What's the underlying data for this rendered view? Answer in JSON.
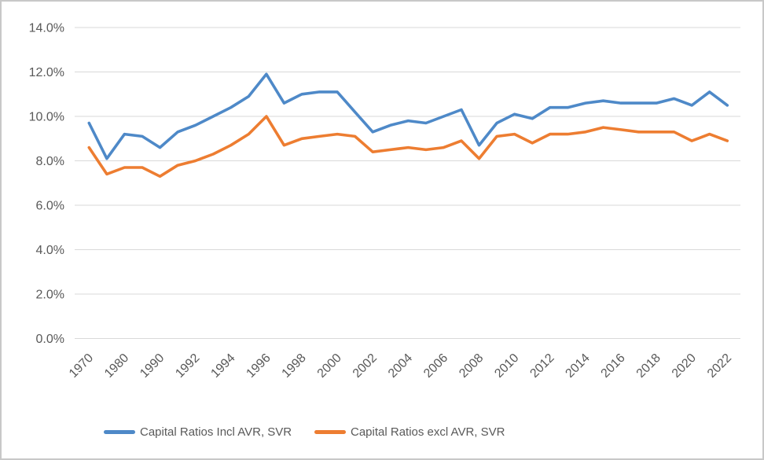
{
  "chart_data": {
    "type": "line",
    "title": "",
    "categories": [
      "1970",
      "1975",
      "1980",
      "1985",
      "1990",
      "1991",
      "1992",
      "1993",
      "1994",
      "1995",
      "1996",
      "1997",
      "1998",
      "1999",
      "2000",
      "2001",
      "2002",
      "2003",
      "2004",
      "2005",
      "2006",
      "2007",
      "2008",
      "2009",
      "2010",
      "2011",
      "2012",
      "2013",
      "2014",
      "2015",
      "2016",
      "2017",
      "2018",
      "2019",
      "2020",
      "2021",
      "2022"
    ],
    "x_axis": {
      "visible_tick_labels": [
        "1970",
        "1980",
        "1990",
        "1992",
        "1994",
        "1996",
        "1998",
        "2000",
        "2002",
        "2004",
        "2006",
        "2008",
        "2010",
        "2012",
        "2014",
        "2016",
        "2018",
        "2020",
        "2022"
      ],
      "label_rotation_deg": 45
    },
    "y_axis": {
      "tick_labels": [
        "0.0%",
        "2.0%",
        "4.0%",
        "6.0%",
        "8.0%",
        "10.0%",
        "12.0%",
        "14.0%"
      ],
      "min": 0,
      "max": 14,
      "step": 2,
      "unit": "%"
    },
    "grid": true,
    "legend_position": "bottom",
    "series": [
      {
        "name": "Capital Ratios Incl AVR, SVR",
        "color": "#4e89c8",
        "values": [
          9.7,
          8.1,
          9.2,
          9.1,
          8.6,
          9.3,
          9.6,
          10.0,
          10.4,
          10.9,
          11.9,
          10.6,
          11.0,
          11.1,
          11.1,
          10.2,
          9.3,
          9.6,
          9.8,
          9.7,
          10.0,
          10.3,
          8.7,
          9.7,
          10.1,
          9.9,
          10.4,
          10.4,
          10.6,
          10.7,
          10.6,
          10.6,
          10.6,
          10.8,
          10.5,
          11.1,
          10.5
        ]
      },
      {
        "name": "Capital Ratios excl AVR, SVR",
        "color": "#ed7d31",
        "values": [
          8.6,
          7.4,
          7.7,
          7.7,
          7.3,
          7.8,
          8.0,
          8.3,
          8.7,
          9.2,
          10.0,
          8.7,
          9.0,
          9.1,
          9.2,
          9.1,
          8.4,
          8.5,
          8.6,
          8.5,
          8.6,
          8.9,
          8.1,
          9.1,
          9.2,
          8.8,
          9.2,
          9.2,
          9.3,
          9.5,
          9.4,
          9.3,
          9.3,
          9.3,
          8.9,
          9.2,
          8.9
        ]
      }
    ]
  },
  "styles": {
    "gridline_color": "#d9d9d9",
    "axis_text_color": "#595959",
    "frame_border_color": "#c8c8c8",
    "background": "#ffffff"
  }
}
